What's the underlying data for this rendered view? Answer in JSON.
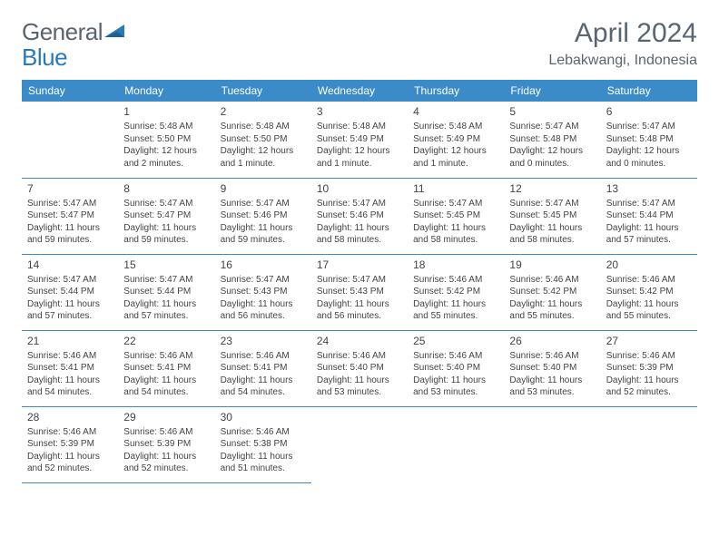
{
  "logo": {
    "word1": "General",
    "word2": "Blue"
  },
  "title": "April 2024",
  "location": "Lebakwangi, Indonesia",
  "colors": {
    "header_bg": "#3b8bc9",
    "header_text": "#ffffff",
    "accent": "#2a7ab8",
    "text": "#5a6570"
  },
  "weekdays": [
    "Sunday",
    "Monday",
    "Tuesday",
    "Wednesday",
    "Thursday",
    "Friday",
    "Saturday"
  ],
  "layout": {
    "first_weekday_index": 1,
    "days_in_month": 30,
    "rows": 5,
    "cols": 7
  },
  "days": [
    {
      "n": 1,
      "sunrise": "5:48 AM",
      "sunset": "5:50 PM",
      "daylight": "12 hours and 2 minutes."
    },
    {
      "n": 2,
      "sunrise": "5:48 AM",
      "sunset": "5:50 PM",
      "daylight": "12 hours and 1 minute."
    },
    {
      "n": 3,
      "sunrise": "5:48 AM",
      "sunset": "5:49 PM",
      "daylight": "12 hours and 1 minute."
    },
    {
      "n": 4,
      "sunrise": "5:48 AM",
      "sunset": "5:49 PM",
      "daylight": "12 hours and 1 minute."
    },
    {
      "n": 5,
      "sunrise": "5:47 AM",
      "sunset": "5:48 PM",
      "daylight": "12 hours and 0 minutes."
    },
    {
      "n": 6,
      "sunrise": "5:47 AM",
      "sunset": "5:48 PM",
      "daylight": "12 hours and 0 minutes."
    },
    {
      "n": 7,
      "sunrise": "5:47 AM",
      "sunset": "5:47 PM",
      "daylight": "11 hours and 59 minutes."
    },
    {
      "n": 8,
      "sunrise": "5:47 AM",
      "sunset": "5:47 PM",
      "daylight": "11 hours and 59 minutes."
    },
    {
      "n": 9,
      "sunrise": "5:47 AM",
      "sunset": "5:46 PM",
      "daylight": "11 hours and 59 minutes."
    },
    {
      "n": 10,
      "sunrise": "5:47 AM",
      "sunset": "5:46 PM",
      "daylight": "11 hours and 58 minutes."
    },
    {
      "n": 11,
      "sunrise": "5:47 AM",
      "sunset": "5:45 PM",
      "daylight": "11 hours and 58 minutes."
    },
    {
      "n": 12,
      "sunrise": "5:47 AM",
      "sunset": "5:45 PM",
      "daylight": "11 hours and 58 minutes."
    },
    {
      "n": 13,
      "sunrise": "5:47 AM",
      "sunset": "5:44 PM",
      "daylight": "11 hours and 57 minutes."
    },
    {
      "n": 14,
      "sunrise": "5:47 AM",
      "sunset": "5:44 PM",
      "daylight": "11 hours and 57 minutes."
    },
    {
      "n": 15,
      "sunrise": "5:47 AM",
      "sunset": "5:44 PM",
      "daylight": "11 hours and 57 minutes."
    },
    {
      "n": 16,
      "sunrise": "5:47 AM",
      "sunset": "5:43 PM",
      "daylight": "11 hours and 56 minutes."
    },
    {
      "n": 17,
      "sunrise": "5:47 AM",
      "sunset": "5:43 PM",
      "daylight": "11 hours and 56 minutes."
    },
    {
      "n": 18,
      "sunrise": "5:46 AM",
      "sunset": "5:42 PM",
      "daylight": "11 hours and 55 minutes."
    },
    {
      "n": 19,
      "sunrise": "5:46 AM",
      "sunset": "5:42 PM",
      "daylight": "11 hours and 55 minutes."
    },
    {
      "n": 20,
      "sunrise": "5:46 AM",
      "sunset": "5:42 PM",
      "daylight": "11 hours and 55 minutes."
    },
    {
      "n": 21,
      "sunrise": "5:46 AM",
      "sunset": "5:41 PM",
      "daylight": "11 hours and 54 minutes."
    },
    {
      "n": 22,
      "sunrise": "5:46 AM",
      "sunset": "5:41 PM",
      "daylight": "11 hours and 54 minutes."
    },
    {
      "n": 23,
      "sunrise": "5:46 AM",
      "sunset": "5:41 PM",
      "daylight": "11 hours and 54 minutes."
    },
    {
      "n": 24,
      "sunrise": "5:46 AM",
      "sunset": "5:40 PM",
      "daylight": "11 hours and 53 minutes."
    },
    {
      "n": 25,
      "sunrise": "5:46 AM",
      "sunset": "5:40 PM",
      "daylight": "11 hours and 53 minutes."
    },
    {
      "n": 26,
      "sunrise": "5:46 AM",
      "sunset": "5:40 PM",
      "daylight": "11 hours and 53 minutes."
    },
    {
      "n": 27,
      "sunrise": "5:46 AM",
      "sunset": "5:39 PM",
      "daylight": "11 hours and 52 minutes."
    },
    {
      "n": 28,
      "sunrise": "5:46 AM",
      "sunset": "5:39 PM",
      "daylight": "11 hours and 52 minutes."
    },
    {
      "n": 29,
      "sunrise": "5:46 AM",
      "sunset": "5:39 PM",
      "daylight": "11 hours and 52 minutes."
    },
    {
      "n": 30,
      "sunrise": "5:46 AM",
      "sunset": "5:38 PM",
      "daylight": "11 hours and 51 minutes."
    }
  ],
  "labels": {
    "sunrise": "Sunrise:",
    "sunset": "Sunset:",
    "daylight": "Daylight:"
  }
}
